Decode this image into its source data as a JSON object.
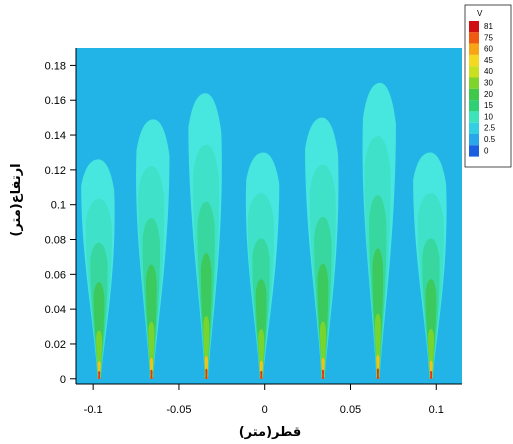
{
  "chart_data": {
    "type": "heatmap",
    "xlabel": "قطر(متر)",
    "ylabel": "ارتفاع(متر)",
    "xlim": [
      -0.11,
      0.115
    ],
    "ylim": [
      -0.003,
      0.19
    ],
    "x_ticks": [
      "-0.1",
      "-0.05",
      "0",
      "0.05",
      "0.1"
    ],
    "x_tick_values": [
      -0.1,
      -0.05,
      0,
      0.05,
      0.1
    ],
    "y_ticks": [
      "0",
      "0.02",
      "0.04",
      "0.06",
      "0.08",
      "0.1",
      "0.12",
      "0.14",
      "0.16",
      "0.18"
    ],
    "y_tick_values": [
      0,
      0.02,
      0.04,
      0.06,
      0.08,
      0.1,
      0.12,
      0.14,
      0.16,
      0.18
    ],
    "background_color": "#22b4e6",
    "legend": {
      "title": "V",
      "position": "top-right",
      "levels": [
        "81",
        "75",
        "60",
        "45",
        "40",
        "30",
        "20",
        "15",
        "10",
        "2.5",
        "0.5",
        "0"
      ],
      "colors": [
        "#d01010",
        "#f05a10",
        "#f7a514",
        "#f5d820",
        "#c8e020",
        "#7fd42c",
        "#40c84a",
        "#2fcf74",
        "#3fe3ba",
        "#35cfe4",
        "#2aa6ea",
        "#1b5fe0"
      ]
    },
    "jets": [
      {
        "x": -0.0965,
        "height": 0.126
      },
      {
        "x": -0.066,
        "height": 0.149
      },
      {
        "x": -0.034,
        "height": 0.164
      },
      {
        "x": -0.002,
        "height": 0.13
      },
      {
        "x": 0.034,
        "height": 0.15
      },
      {
        "x": 0.066,
        "height": 0.17
      },
      {
        "x": 0.097,
        "height": 0.13
      }
    ]
  }
}
